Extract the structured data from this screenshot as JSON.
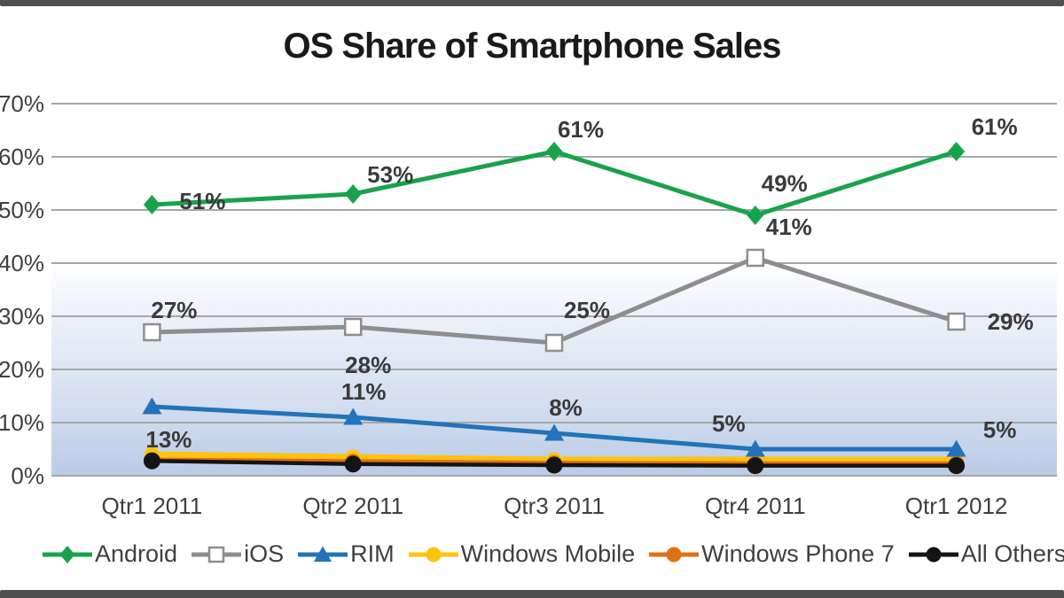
{
  "chart_data": {
    "type": "line",
    "title": "OS Share of Smartphone Sales",
    "categories": [
      "Qtr1 2011",
      "Qtr2 2011",
      "Qtr3 2011",
      "Qtr4 2011",
      "Qtr1 2012"
    ],
    "y_axis": {
      "ticks": [
        "70%",
        "60%",
        "50%",
        "40%",
        "30%",
        "20%",
        "10%",
        "0%"
      ],
      "min": 0,
      "max": 70,
      "unit": "%"
    },
    "grid": true,
    "legend_position": "bottom",
    "series": [
      {
        "name": "Android",
        "color": "#18a34b",
        "marker": "diamond",
        "values": [
          51,
          53,
          61,
          49,
          61
        ],
        "point_labels": [
          "51%",
          "53%",
          "61%",
          "49%",
          "61%"
        ]
      },
      {
        "name": "iOS",
        "color": "#8e8e8e",
        "marker": "open-square",
        "values": [
          27,
          28,
          25,
          41,
          29
        ],
        "point_labels": [
          "27%",
          "28%",
          "25%",
          "41%",
          "29%"
        ]
      },
      {
        "name": "RIM",
        "color": "#2273b9",
        "marker": "triangle",
        "values": [
          13,
          11,
          8,
          5,
          5
        ],
        "point_labels": [
          "13%",
          "11%",
          "8%",
          "5%",
          "5%"
        ]
      },
      {
        "name": "Windows Mobile",
        "color": "#ffc20e",
        "marker": "circle",
        "values": [
          4,
          3.5,
          3,
          3,
          3
        ],
        "point_labels": null
      },
      {
        "name": "Windows Phone 7",
        "color": "#e07014",
        "marker": "circle",
        "values": [
          3,
          2.7,
          2.4,
          2.3,
          2.3
        ],
        "point_labels": null
      },
      {
        "name": "All Others",
        "color": "#141414",
        "marker": "circle",
        "values": [
          2.8,
          2.2,
          2,
          1.9,
          1.9
        ],
        "point_labels": null
      }
    ],
    "label_offsets": {
      "Android": [
        [
          57,
          -4
        ],
        [
          42,
          -22
        ],
        [
          30,
          -25
        ],
        [
          33,
          -36
        ],
        [
          43,
          -28
        ]
      ],
      "iOS": [
        [
          25,
          -25
        ],
        [
          17,
          43
        ],
        [
          37,
          -37
        ],
        [
          38,
          -35
        ],
        [
          61,
          0
        ]
      ],
      "RIM": [
        [
          19,
          37
        ],
        [
          12,
          -29
        ],
        [
          13,
          -29
        ],
        [
          -30,
          -29
        ],
        [
          49,
          -22
        ]
      ]
    },
    "colors": {
      "gridline": "#a6a6a6",
      "plot_gradient_top": "#ffffff",
      "plot_gradient_bottom": "#b9cbe8",
      "data_label_text": "#3a3a3a",
      "axis_text": "#3f3f3f",
      "frame_border": "#4f4f4f"
    }
  }
}
